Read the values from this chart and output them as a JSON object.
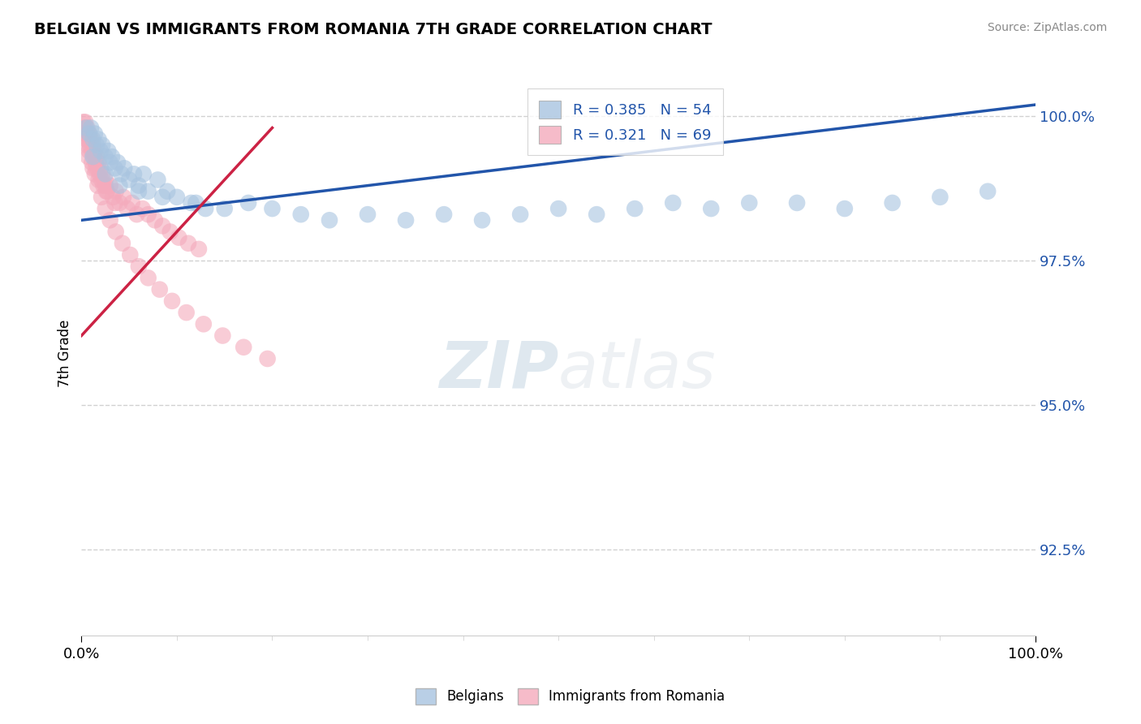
{
  "title": "BELGIAN VS IMMIGRANTS FROM ROMANIA 7TH GRADE CORRELATION CHART",
  "source_text": "Source: ZipAtlas.com",
  "ylabel": "7th Grade",
  "xlim": [
    0.0,
    1.0
  ],
  "ylim": [
    0.91,
    1.008
  ],
  "ytick_vals": [
    0.925,
    0.95,
    0.975,
    1.0
  ],
  "ytick_labels": [
    "92.5%",
    "95.0%",
    "97.5%",
    "100.0%"
  ],
  "xtick_vals": [
    0.0,
    1.0
  ],
  "xtick_labels": [
    "0.0%",
    "100.0%"
  ],
  "blue_R": 0.385,
  "blue_N": 54,
  "pink_R": 0.321,
  "pink_N": 69,
  "blue_color": "#A8C4E0",
  "pink_color": "#F4AABC",
  "blue_line_color": "#2255AA",
  "pink_line_color": "#CC2244",
  "watermark_zip": "ZIP",
  "watermark_atlas": "atlas",
  "legend_label_blue": "Belgians",
  "legend_label_pink": "Immigrants from Romania",
  "blue_scatter_x": [
    0.005,
    0.008,
    0.01,
    0.012,
    0.014,
    0.016,
    0.018,
    0.02,
    0.022,
    0.025,
    0.028,
    0.03,
    0.032,
    0.035,
    0.038,
    0.042,
    0.045,
    0.05,
    0.055,
    0.06,
    0.065,
    0.07,
    0.08,
    0.09,
    0.1,
    0.115,
    0.13,
    0.15,
    0.175,
    0.2,
    0.23,
    0.26,
    0.3,
    0.34,
    0.38,
    0.42,
    0.46,
    0.5,
    0.54,
    0.58,
    0.62,
    0.66,
    0.7,
    0.75,
    0.8,
    0.85,
    0.9,
    0.95,
    0.012,
    0.025,
    0.04,
    0.06,
    0.085,
    0.12
  ],
  "blue_scatter_y": [
    0.998,
    0.997,
    0.998,
    0.996,
    0.997,
    0.995,
    0.996,
    0.994,
    0.995,
    0.993,
    0.994,
    0.992,
    0.993,
    0.991,
    0.992,
    0.99,
    0.991,
    0.989,
    0.99,
    0.988,
    0.99,
    0.987,
    0.989,
    0.987,
    0.986,
    0.985,
    0.984,
    0.984,
    0.985,
    0.984,
    0.983,
    0.982,
    0.983,
    0.982,
    0.983,
    0.982,
    0.983,
    0.984,
    0.983,
    0.984,
    0.985,
    0.984,
    0.985,
    0.985,
    0.984,
    0.985,
    0.986,
    0.987,
    0.993,
    0.99,
    0.988,
    0.987,
    0.986,
    0.985
  ],
  "pink_scatter_x": [
    0.002,
    0.003,
    0.004,
    0.005,
    0.006,
    0.007,
    0.008,
    0.009,
    0.01,
    0.011,
    0.012,
    0.013,
    0.014,
    0.015,
    0.016,
    0.017,
    0.018,
    0.019,
    0.02,
    0.021,
    0.022,
    0.023,
    0.025,
    0.027,
    0.03,
    0.033,
    0.036,
    0.04,
    0.044,
    0.048,
    0.053,
    0.058,
    0.064,
    0.07,
    0.077,
    0.085,
    0.093,
    0.102,
    0.112,
    0.123,
    0.005,
    0.008,
    0.011,
    0.014,
    0.017,
    0.021,
    0.025,
    0.03,
    0.036,
    0.043,
    0.051,
    0.06,
    0.07,
    0.082,
    0.095,
    0.11,
    0.128,
    0.148,
    0.17,
    0.195,
    0.007,
    0.012,
    0.018,
    0.026,
    0.035,
    0.003,
    0.006,
    0.015,
    0.025
  ],
  "pink_scatter_y": [
    0.999,
    0.998,
    0.999,
    0.997,
    0.998,
    0.996,
    0.997,
    0.995,
    0.996,
    0.994,
    0.995,
    0.993,
    0.994,
    0.992,
    0.993,
    0.991,
    0.992,
    0.99,
    0.991,
    0.989,
    0.99,
    0.988,
    0.989,
    0.987,
    0.988,
    0.986,
    0.987,
    0.985,
    0.986,
    0.984,
    0.985,
    0.983,
    0.984,
    0.983,
    0.982,
    0.981,
    0.98,
    0.979,
    0.978,
    0.977,
    0.996,
    0.994,
    0.992,
    0.99,
    0.988,
    0.986,
    0.984,
    0.982,
    0.98,
    0.978,
    0.976,
    0.974,
    0.972,
    0.97,
    0.968,
    0.966,
    0.964,
    0.962,
    0.96,
    0.958,
    0.993,
    0.991,
    0.989,
    0.987,
    0.985,
    0.997,
    0.995,
    0.991,
    0.988
  ],
  "blue_line_x": [
    0.0,
    1.0
  ],
  "blue_line_y": [
    0.982,
    1.002
  ],
  "pink_line_x": [
    0.0,
    0.2
  ],
  "pink_line_y": [
    0.962,
    0.998
  ]
}
